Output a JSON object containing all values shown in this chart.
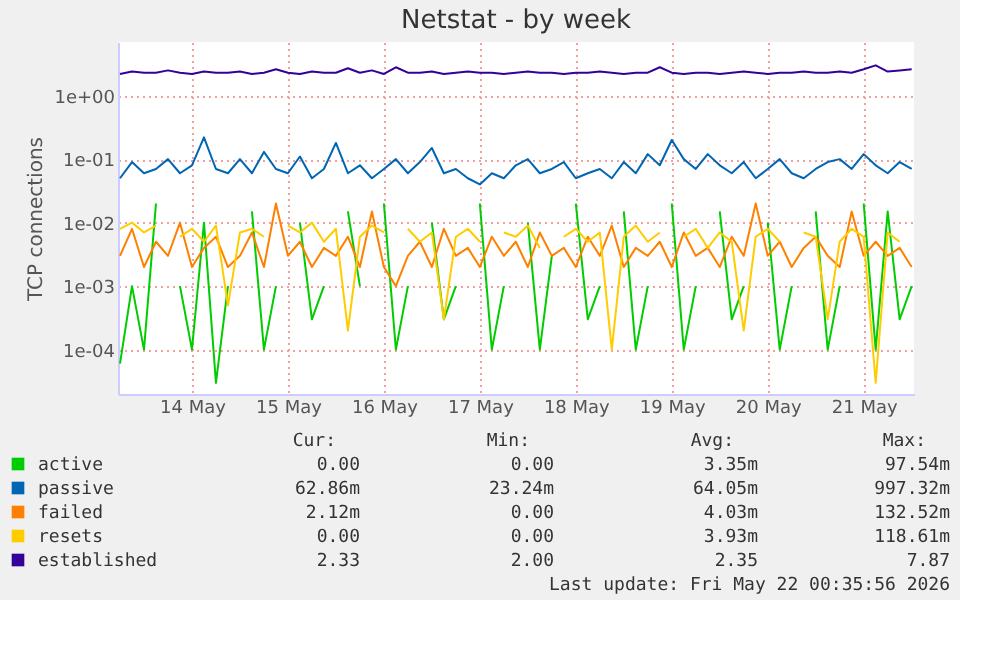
{
  "chart_data": {
    "type": "line",
    "title": "Netstat - by week",
    "ylabel": "TCP connections",
    "x": [
      "2026-05-13T18:00",
      "2026-05-13T21:00",
      "2026-05-14T00:00",
      "2026-05-14T03:00",
      "2026-05-14T06:00",
      "2026-05-14T09:00",
      "2026-05-14T12:00",
      "2026-05-14T15:00",
      "2026-05-14T18:00",
      "2026-05-14T21:00",
      "2026-05-15T00:00",
      "2026-05-15T03:00",
      "2026-05-15T06:00",
      "2026-05-15T09:00",
      "2026-05-15T12:00",
      "2026-05-15T15:00",
      "2026-05-15T18:00",
      "2026-05-15T21:00",
      "2026-05-16T00:00",
      "2026-05-16T03:00",
      "2026-05-16T06:00",
      "2026-05-16T09:00",
      "2026-05-16T12:00",
      "2026-05-16T15:00",
      "2026-05-16T18:00",
      "2026-05-16T21:00",
      "2026-05-17T00:00",
      "2026-05-17T03:00",
      "2026-05-17T06:00",
      "2026-05-17T09:00",
      "2026-05-17T12:00",
      "2026-05-17T15:00",
      "2026-05-17T18:00",
      "2026-05-17T21:00",
      "2026-05-18T00:00",
      "2026-05-18T03:00",
      "2026-05-18T06:00",
      "2026-05-18T09:00",
      "2026-05-18T12:00",
      "2026-05-18T15:00",
      "2026-05-18T18:00",
      "2026-05-18T21:00",
      "2026-05-19T00:00",
      "2026-05-19T03:00",
      "2026-05-19T06:00",
      "2026-05-19T09:00",
      "2026-05-19T12:00",
      "2026-05-19T15:00",
      "2026-05-19T18:00",
      "2026-05-19T21:00",
      "2026-05-20T00:00",
      "2026-05-20T03:00",
      "2026-05-20T06:00",
      "2026-05-20T09:00",
      "2026-05-20T12:00",
      "2026-05-20T15:00",
      "2026-05-20T18:00",
      "2026-05-20T21:00",
      "2026-05-21T00:00",
      "2026-05-21T03:00",
      "2026-05-21T06:00",
      "2026-05-21T09:00",
      "2026-05-21T12:00",
      "2026-05-21T15:00",
      "2026-05-21T18:00",
      "2026-05-21T21:00",
      "2026-05-22T00:00"
    ],
    "series": [
      {
        "name": "active",
        "color": "#00cc00",
        "values": [
          6e-05,
          0.001,
          0.0001,
          0.02,
          null,
          0.001,
          0.0001,
          0.01,
          3e-05,
          0.001,
          null,
          0.015,
          0.0001,
          0.001,
          null,
          0.01,
          0.0003,
          0.001,
          null,
          0.015,
          0.001,
          null,
          0.02,
          0.0001,
          0.001,
          null,
          0.01,
          0.0003,
          0.001,
          null,
          0.02,
          0.0001,
          0.001,
          null,
          0.01,
          0.0001,
          0.003,
          null,
          0.02,
          0.0003,
          0.001,
          null,
          0.015,
          0.0001,
          0.001,
          null,
          0.02,
          0.0001,
          0.001,
          null,
          0.015,
          0.0003,
          0.001,
          null,
          0.01,
          0.0001,
          0.001,
          null,
          0.015,
          0.0001,
          0.001,
          null,
          0.02,
          0.0001,
          0.015,
          0.0003,
          0.001
        ]
      },
      {
        "name": "passive",
        "color": "#0066b3",
        "values": [
          0.05,
          0.09,
          0.06,
          0.07,
          0.1,
          0.06,
          0.08,
          0.22,
          0.07,
          0.06,
          0.1,
          0.06,
          0.13,
          0.07,
          0.06,
          0.11,
          0.05,
          0.07,
          0.18,
          0.06,
          0.08,
          0.05,
          0.07,
          0.1,
          0.06,
          0.09,
          0.15,
          0.06,
          0.07,
          0.05,
          0.04,
          0.06,
          0.05,
          0.08,
          0.1,
          0.06,
          0.07,
          0.09,
          0.05,
          0.06,
          0.07,
          0.05,
          0.09,
          0.06,
          0.12,
          0.08,
          0.2,
          0.1,
          0.07,
          0.12,
          0.08,
          0.06,
          0.09,
          0.05,
          0.07,
          0.1,
          0.06,
          0.05,
          0.07,
          0.09,
          0.1,
          0.07,
          0.12,
          0.08,
          0.06,
          0.09,
          0.07
        ]
      },
      {
        "name": "failed",
        "color": "#ff8000",
        "values": [
          0.003,
          0.008,
          0.002,
          0.005,
          0.003,
          0.01,
          0.002,
          0.004,
          0.006,
          0.002,
          0.003,
          0.007,
          0.002,
          0.02,
          0.003,
          0.005,
          0.002,
          0.004,
          0.003,
          0.006,
          0.002,
          0.015,
          0.002,
          0.001,
          0.003,
          0.005,
          0.002,
          0.008,
          0.003,
          0.004,
          0.002,
          0.006,
          0.003,
          0.005,
          0.002,
          0.007,
          0.003,
          0.004,
          0.002,
          0.006,
          0.003,
          0.009,
          0.002,
          0.004,
          0.003,
          0.005,
          0.002,
          0.007,
          0.003,
          0.004,
          0.002,
          0.006,
          0.003,
          0.02,
          0.003,
          0.005,
          0.002,
          0.004,
          0.006,
          0.003,
          0.002,
          0.015,
          0.003,
          0.005,
          0.003,
          0.004,
          0.002
        ]
      },
      {
        "name": "resets",
        "color": "#ffcc00",
        "values": [
          0.008,
          0.01,
          0.007,
          0.009,
          null,
          0.006,
          0.008,
          0.005,
          0.009,
          0.0005,
          0.007,
          0.008,
          0.006,
          null,
          0.009,
          0.007,
          0.01,
          0.005,
          0.008,
          0.0002,
          0.006,
          0.009,
          0.007,
          null,
          0.008,
          0.005,
          0.007,
          0.0003,
          0.006,
          0.008,
          0.005,
          null,
          0.007,
          0.006,
          0.009,
          0.004,
          null,
          0.006,
          0.008,
          0.005,
          0.007,
          0.0001,
          0.006,
          0.009,
          0.005,
          0.007,
          null,
          0.006,
          0.008,
          0.004,
          0.007,
          0.005,
          0.0002,
          0.006,
          0.008,
          0.005,
          null,
          0.007,
          0.006,
          0.0003,
          0.005,
          0.008,
          0.006,
          3e-05,
          0.007,
          0.005,
          null
        ]
      },
      {
        "name": "established",
        "color": "#330099",
        "values": [
          2.2,
          2.4,
          2.3,
          2.3,
          2.5,
          2.3,
          2.2,
          2.4,
          2.3,
          2.3,
          2.4,
          2.2,
          2.3,
          2.6,
          2.3,
          2.2,
          2.4,
          2.3,
          2.3,
          2.7,
          2.3,
          2.5,
          2.2,
          2.8,
          2.3,
          2.3,
          2.4,
          2.2,
          2.3,
          2.4,
          2.3,
          2.3,
          2.2,
          2.3,
          2.4,
          2.3,
          2.3,
          2.2,
          2.3,
          2.3,
          2.4,
          2.3,
          2.2,
          2.3,
          2.3,
          2.8,
          2.3,
          2.2,
          2.3,
          2.3,
          2.2,
          2.3,
          2.4,
          2.3,
          2.2,
          2.3,
          2.3,
          2.4,
          2.3,
          2.3,
          2.4,
          2.3,
          2.6,
          3.0,
          2.4,
          2.5,
          2.6
        ]
      }
    ],
    "log": "y",
    "ylim": [
      2e-05,
      7
    ],
    "yticks": [
      {
        "value": 0.0001,
        "label": "1e-04"
      },
      {
        "value": 0.001,
        "label": "1e-03"
      },
      {
        "value": 0.01,
        "label": "1e-02"
      },
      {
        "value": 0.1,
        "label": "1e-01"
      },
      {
        "value": 1,
        "label": "1e+00"
      }
    ],
    "xlim": [
      "2026-05-13T17:30",
      "2026-05-22T00:35"
    ],
    "xticks": [
      {
        "value": "2026-05-14T12:00",
        "label": "14 May"
      },
      {
        "value": "2026-05-15T12:00",
        "label": "15 May"
      },
      {
        "value": "2026-05-16T12:00",
        "label": "16 May"
      },
      {
        "value": "2026-05-17T12:00",
        "label": "17 May"
      },
      {
        "value": "2026-05-18T12:00",
        "label": "18 May"
      },
      {
        "value": "2026-05-19T12:00",
        "label": "19 May"
      },
      {
        "value": "2026-05-20T12:00",
        "label": "20 May"
      },
      {
        "value": "2026-05-21T12:00",
        "label": "21 May"
      }
    ],
    "grid": true,
    "legend": "bottom",
    "marker": "none",
    "line_style": "solid",
    "annotations": [
      "Cur:",
      "Min:",
      "Avg:",
      "Max:",
      "0.00",
      "0.00",
      "3.35m",
      "97.54m",
      "62.86m",
      "23.24m",
      "64.05m",
      "997.32m",
      "2.12m",
      "0.00",
      "4.03m",
      "132.52m",
      "0.00",
      "0.00",
      "3.93m",
      "118.61m",
      "2.33",
      "2.00",
      "2.35",
      "7.87",
      "Last update: Fri May 22 00:35:56 2026"
    ]
  }
}
